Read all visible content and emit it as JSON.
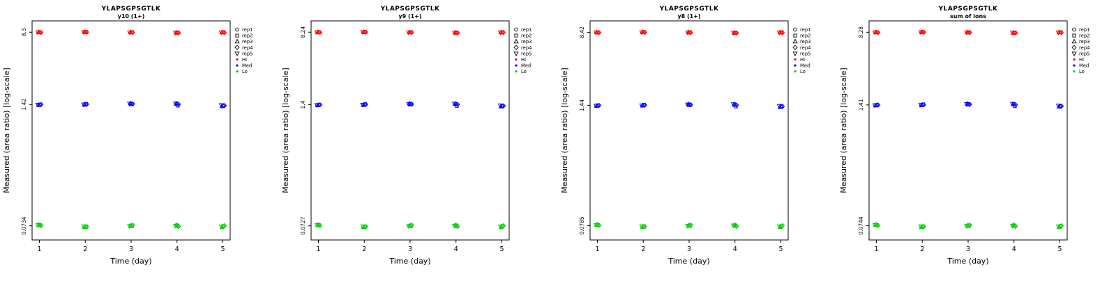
{
  "legend": {
    "rep_labels": [
      "rep1",
      "rep2",
      "rep3",
      "rep4",
      "rep5"
    ],
    "rep_symbols": [
      "circle",
      "square",
      "triangle-up",
      "diamond",
      "triangle-down"
    ],
    "levels": [
      {
        "label": "Hi",
        "color": "#FF0000"
      },
      {
        "label": "Med",
        "color": "#0000FF"
      },
      {
        "label": "Lo",
        "color": "#00CC00"
      }
    ]
  },
  "chart_data": [
    {
      "type": "scatter",
      "title": "YLAPSGPSGTLK",
      "subtitle": "y10 (1+)",
      "xlabel": "Time (day)",
      "ylabel": "Measured (area ratio) [log-scale]",
      "x_ticks": [
        1,
        2,
        3,
        4,
        5
      ],
      "y_scale": "log10",
      "y_tick_labels": [
        "8.3",
        "1.42",
        "0.0734"
      ],
      "y_tick_values": [
        8.3,
        1.42,
        0.0734
      ],
      "series": [
        {
          "name": "Hi",
          "color": "#FF0000",
          "days": [
            [
              8.31,
              8.27,
              8.29,
              8.24,
              8.28
            ],
            [
              8.36,
              8.31,
              8.34,
              8.29,
              8.32
            ],
            [
              8.27,
              8.31,
              8.29,
              8.24,
              8.26
            ],
            [
              8.18,
              8.23,
              8.2,
              8.15,
              8.21
            ],
            [
              8.26,
              8.31,
              8.28,
              8.22,
              8.25
            ]
          ]
        },
        {
          "name": "Med",
          "color": "#0000FF",
          "days": [
            [
              1.41,
              1.42,
              1.4,
              1.42,
              1.41
            ],
            [
              1.42,
              1.44,
              1.41,
              1.43,
              1.42
            ],
            [
              1.45,
              1.43,
              1.46,
              1.44,
              1.45
            ],
            [
              1.44,
              1.38,
              1.45,
              1.43,
              1.46
            ],
            [
              1.37,
              1.39,
              1.36,
              1.38,
              1.4
            ]
          ]
        },
        {
          "name": "Lo",
          "color": "#00CC00",
          "days": [
            [
              0.0758,
              0.0745,
              0.0751,
              0.0738,
              0.0747
            ],
            [
              0.0716,
              0.0723,
              0.0712,
              0.0719,
              0.0725
            ],
            [
              0.0741,
              0.0728,
              0.0735,
              0.0748,
              0.0731
            ],
            [
              0.0752,
              0.0729,
              0.0744,
              0.0722,
              0.0737
            ],
            [
              0.0719,
              0.0731,
              0.0708,
              0.0736,
              0.0724
            ]
          ]
        }
      ]
    },
    {
      "type": "scatter",
      "title": "YLAPSGPSGTLK",
      "subtitle": "y9 (1+)",
      "xlabel": "Time (day)",
      "ylabel": "Measured (area ratio) [log-scale]",
      "x_ticks": [
        1,
        2,
        3,
        4,
        5
      ],
      "y_scale": "log10",
      "y_tick_labels": [
        "8.24",
        "1.4",
        "0.0727"
      ],
      "y_tick_values": [
        8.24,
        1.4,
        0.0727
      ],
      "series": [
        {
          "name": "Hi",
          "color": "#FF0000",
          "days": [
            [
              8.25,
              8.21,
              8.23,
              8.18,
              8.22
            ],
            [
              8.3,
              8.25,
              8.28,
              8.23,
              8.26
            ],
            [
              8.21,
              8.25,
              8.23,
              8.18,
              8.2
            ],
            [
              8.12,
              8.17,
              8.14,
              8.09,
              8.15
            ],
            [
              8.2,
              8.25,
              8.22,
              8.16,
              8.19
            ]
          ]
        },
        {
          "name": "Med",
          "color": "#0000FF",
          "days": [
            [
              1.39,
              1.4,
              1.38,
              1.4,
              1.39
            ],
            [
              1.4,
              1.42,
              1.39,
              1.41,
              1.4
            ],
            [
              1.43,
              1.41,
              1.44,
              1.42,
              1.43
            ],
            [
              1.42,
              1.36,
              1.43,
              1.41,
              1.44
            ],
            [
              1.35,
              1.37,
              1.34,
              1.36,
              1.38
            ]
          ]
        },
        {
          "name": "Lo",
          "color": "#00CC00",
          "days": [
            [
              0.0751,
              0.0738,
              0.0744,
              0.0731,
              0.074
            ],
            [
              0.0709,
              0.0716,
              0.0705,
              0.0712,
              0.0718
            ],
            [
              0.0734,
              0.0721,
              0.0728,
              0.0741,
              0.0724
            ],
            [
              0.0745,
              0.0722,
              0.0737,
              0.0715,
              0.073
            ],
            [
              0.0712,
              0.0724,
              0.0701,
              0.0729,
              0.0717
            ]
          ]
        }
      ]
    },
    {
      "type": "scatter",
      "title": "YLAPSGPSGTLK",
      "subtitle": "y8 (1+)",
      "xlabel": "Time (day)",
      "ylabel": "Measured (area ratio) [log-scale]",
      "x_ticks": [
        1,
        2,
        3,
        4,
        5
      ],
      "y_scale": "log10",
      "y_tick_labels": [
        "8.42",
        "1.44",
        "0.0785"
      ],
      "y_tick_values": [
        8.42,
        1.44,
        0.0785
      ],
      "series": [
        {
          "name": "Hi",
          "color": "#FF0000",
          "days": [
            [
              8.43,
              8.39,
              8.41,
              8.36,
              8.4
            ],
            [
              8.48,
              8.43,
              8.46,
              8.41,
              8.44
            ],
            [
              8.39,
              8.43,
              8.41,
              8.36,
              8.38
            ],
            [
              8.3,
              8.35,
              8.32,
              8.27,
              8.33
            ],
            [
              8.38,
              8.43,
              8.4,
              8.34,
              8.37
            ]
          ]
        },
        {
          "name": "Med",
          "color": "#0000FF",
          "days": [
            [
              1.43,
              1.44,
              1.42,
              1.44,
              1.43
            ],
            [
              1.44,
              1.46,
              1.43,
              1.45,
              1.44
            ],
            [
              1.47,
              1.45,
              1.48,
              1.46,
              1.47
            ],
            [
              1.46,
              1.4,
              1.47,
              1.45,
              1.48
            ],
            [
              1.39,
              1.41,
              1.38,
              1.4,
              1.42
            ]
          ]
        },
        {
          "name": "Lo",
          "color": "#00CC00",
          "days": [
            [
              0.081,
              0.0797,
              0.0803,
              0.079,
              0.0799
            ],
            [
              0.0766,
              0.0773,
              0.0762,
              0.0769,
              0.0775
            ],
            [
              0.0792,
              0.0779,
              0.0786,
              0.0799,
              0.0782
            ],
            [
              0.0804,
              0.0781,
              0.0796,
              0.0773,
              0.0789
            ],
            [
              0.0769,
              0.0781,
              0.0758,
              0.0787,
              0.0774
            ]
          ]
        }
      ]
    },
    {
      "type": "scatter",
      "title": "YLAPSGPSGTLK",
      "subtitle": "sum of ions",
      "xlabel": "Time (day)",
      "ylabel": "Measured (area ratio) [log-scale]",
      "x_ticks": [
        1,
        2,
        3,
        4,
        5
      ],
      "y_scale": "log10",
      "y_tick_labels": [
        "8.28",
        "1.41",
        "0.0744"
      ],
      "y_tick_values": [
        8.28,
        1.41,
        0.0744
      ],
      "series": [
        {
          "name": "Hi",
          "color": "#FF0000",
          "days": [
            [
              8.29,
              8.25,
              8.27,
              8.22,
              8.26
            ],
            [
              8.34,
              8.29,
              8.32,
              8.27,
              8.3
            ],
            [
              8.25,
              8.29,
              8.27,
              8.22,
              8.24
            ],
            [
              8.16,
              8.21,
              8.18,
              8.13,
              8.19
            ],
            [
              8.24,
              8.29,
              8.26,
              8.2,
              8.23
            ]
          ]
        },
        {
          "name": "Med",
          "color": "#0000FF",
          "days": [
            [
              1.4,
              1.41,
              1.39,
              1.41,
              1.4
            ],
            [
              1.41,
              1.43,
              1.4,
              1.42,
              1.41
            ],
            [
              1.44,
              1.42,
              1.45,
              1.43,
              1.44
            ],
            [
              1.43,
              1.37,
              1.44,
              1.42,
              1.45
            ],
            [
              1.36,
              1.38,
              1.35,
              1.37,
              1.39
            ]
          ]
        },
        {
          "name": "Lo",
          "color": "#00CC00",
          "days": [
            [
              0.0768,
              0.0755,
              0.0761,
              0.0748,
              0.0757
            ],
            [
              0.0726,
              0.0733,
              0.0722,
              0.0729,
              0.0735
            ],
            [
              0.0751,
              0.0738,
              0.0745,
              0.0758,
              0.0741
            ],
            [
              0.0762,
              0.0739,
              0.0754,
              0.0732,
              0.0747
            ],
            [
              0.0729,
              0.0741,
              0.0718,
              0.0746,
              0.0734
            ]
          ]
        }
      ]
    }
  ]
}
